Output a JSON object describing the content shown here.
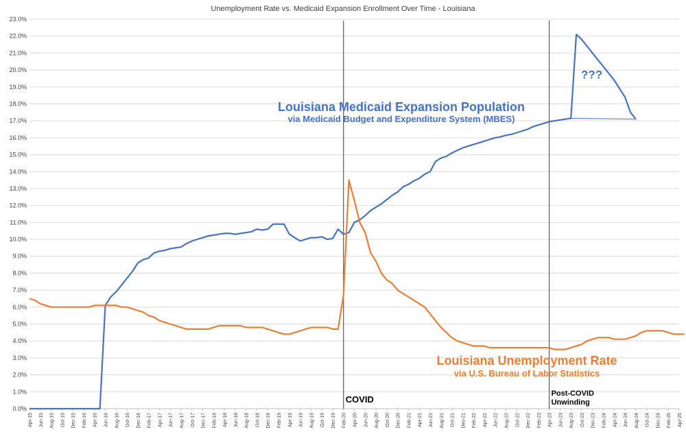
{
  "chart_data": {
    "type": "line",
    "title": "Unemployment Rate vs. Medicaid Expansion Enrollment Over Time - Louisiana",
    "ylim": [
      0,
      23
    ],
    "y_ticks": [
      "0.0%",
      "1.0%",
      "2.0%",
      "3.0%",
      "4.0%",
      "5.0%",
      "6.0%",
      "7.0%",
      "8.0%",
      "9.0%",
      "10.0%",
      "11.0%",
      "12.0%",
      "13.0%",
      "14.0%",
      "15.0%",
      "16.0%",
      "17.0%",
      "18.0%",
      "19.0%",
      "20.0%",
      "21.0%",
      "22.0%",
      "23.0%"
    ],
    "x_ticks": [
      "Apr-15",
      "Jun-15",
      "Aug-15",
      "Oct-15",
      "Dec-15",
      "Feb-16",
      "Apr-16",
      "Jun-16",
      "Aug-16",
      "Oct-16",
      "Dec-16",
      "Feb-17",
      "Apr-17",
      "Jun-17",
      "Aug-17",
      "Oct-17",
      "Dec-17",
      "Feb-18",
      "Apr-18",
      "Jun-18",
      "Aug-18",
      "Oct-18",
      "Dec-18",
      "Feb-19",
      "Apr-19",
      "Jun-19",
      "Aug-19",
      "Oct-19",
      "Dec-19",
      "Feb-20",
      "Apr-20",
      "Jun-20",
      "Aug-20",
      "Oct-20",
      "Dec-20",
      "Feb-21",
      "Apr-21",
      "Jun-21",
      "Aug-21",
      "Oct-21",
      "Dec-21",
      "Feb-22",
      "Apr-22",
      "Jun-22",
      "Aug-22",
      "Oct-22",
      "Dec-22",
      "Feb-23",
      "Apr-23",
      "Jun-23",
      "Aug-23",
      "Oct-23",
      "Dec-23",
      "Feb-24",
      "Apr-24",
      "Jun-24",
      "Aug-24",
      "Oct-24",
      "Dec-24",
      "Feb-25",
      "Apr-25"
    ],
    "series": [
      {
        "name": "Louisiana Medicaid Expansion Population",
        "source": "via Medicaid Budget and Expenditure System (MBES)",
        "color": "#4472c4",
        "values": [
          0,
          0,
          0,
          0,
          0,
          0,
          0,
          0,
          0,
          0,
          0,
          0,
          0,
          0,
          6.1,
          6.6,
          6.9,
          7.3,
          7.7,
          8.1,
          8.6,
          8.8,
          8.9,
          9.2,
          9.3,
          9.35,
          9.45,
          9.5,
          9.55,
          9.75,
          9.9,
          10.0,
          10.1,
          10.2,
          10.25,
          10.3,
          10.35,
          10.35,
          10.3,
          10.35,
          10.4,
          10.45,
          10.6,
          10.55,
          10.6,
          10.9,
          10.9,
          10.9,
          10.3,
          10.1,
          9.9,
          10.0,
          10.1,
          10.1,
          10.15,
          10.0,
          10.05,
          10.6,
          10.3,
          10.4,
          11.0,
          11.15,
          11.4,
          11.7,
          11.9,
          12.1,
          12.35,
          12.6,
          12.8,
          13.1,
          13.25,
          13.45,
          13.6,
          13.85,
          14.0,
          14.6,
          14.8,
          14.9,
          15.1,
          15.25,
          15.4,
          15.5,
          15.6,
          15.7,
          15.8,
          15.9,
          16.0,
          16.05,
          16.15,
          16.2,
          16.3,
          16.4,
          16.5,
          16.65,
          16.75,
          16.85,
          16.95,
          17.0,
          17.05,
          17.1,
          17.15,
          22.1,
          21.8,
          21.4,
          21.0,
          20.6,
          20.2,
          19.8,
          19.4,
          18.9,
          18.4,
          17.5,
          17.1
        ]
      },
      {
        "name": "Louisiana Unemployment Rate",
        "source": "via U.S. Bureau of Labor Statistics",
        "color": "#ed7d31",
        "values": [
          6.5,
          6.4,
          6.2,
          6.1,
          6.0,
          6.0,
          6.0,
          6.0,
          6.0,
          6.0,
          6.0,
          6.0,
          6.1,
          6.1,
          6.1,
          6.1,
          6.1,
          6.0,
          6.0,
          5.9,
          5.8,
          5.7,
          5.5,
          5.4,
          5.2,
          5.1,
          5.0,
          4.9,
          4.8,
          4.7,
          4.7,
          4.7,
          4.7,
          4.7,
          4.8,
          4.9,
          4.9,
          4.9,
          4.9,
          4.9,
          4.8,
          4.8,
          4.8,
          4.8,
          4.7,
          4.6,
          4.5,
          4.4,
          4.4,
          4.5,
          4.6,
          4.7,
          4.8,
          4.8,
          4.8,
          4.8,
          4.7,
          4.7,
          6.7,
          13.5,
          12.3,
          11.0,
          10.4,
          9.2,
          8.7,
          8.0,
          7.6,
          7.4,
          7.0,
          6.8,
          6.6,
          6.4,
          6.2,
          6.0,
          5.6,
          5.2,
          4.8,
          4.5,
          4.2,
          4.0,
          3.9,
          3.8,
          3.7,
          3.7,
          3.7,
          3.6,
          3.6,
          3.6,
          3.6,
          3.6,
          3.6,
          3.6,
          3.6,
          3.6,
          3.6,
          3.6,
          3.6,
          3.5,
          3.5,
          3.5,
          3.6,
          3.7,
          3.8,
          4.0,
          4.1,
          4.2,
          4.2,
          4.2,
          4.1,
          4.1,
          4.1,
          4.2,
          4.3,
          4.5,
          4.6,
          4.6,
          4.6,
          4.6,
          4.5,
          4.4,
          4.4,
          4.4
        ]
      }
    ],
    "events": [
      {
        "label": "COVID",
        "month_index": 58
      },
      {
        "label_line1": "Post-COVID",
        "label_line2": "Unwinding",
        "month_index": 96
      }
    ],
    "annotation": "???"
  }
}
